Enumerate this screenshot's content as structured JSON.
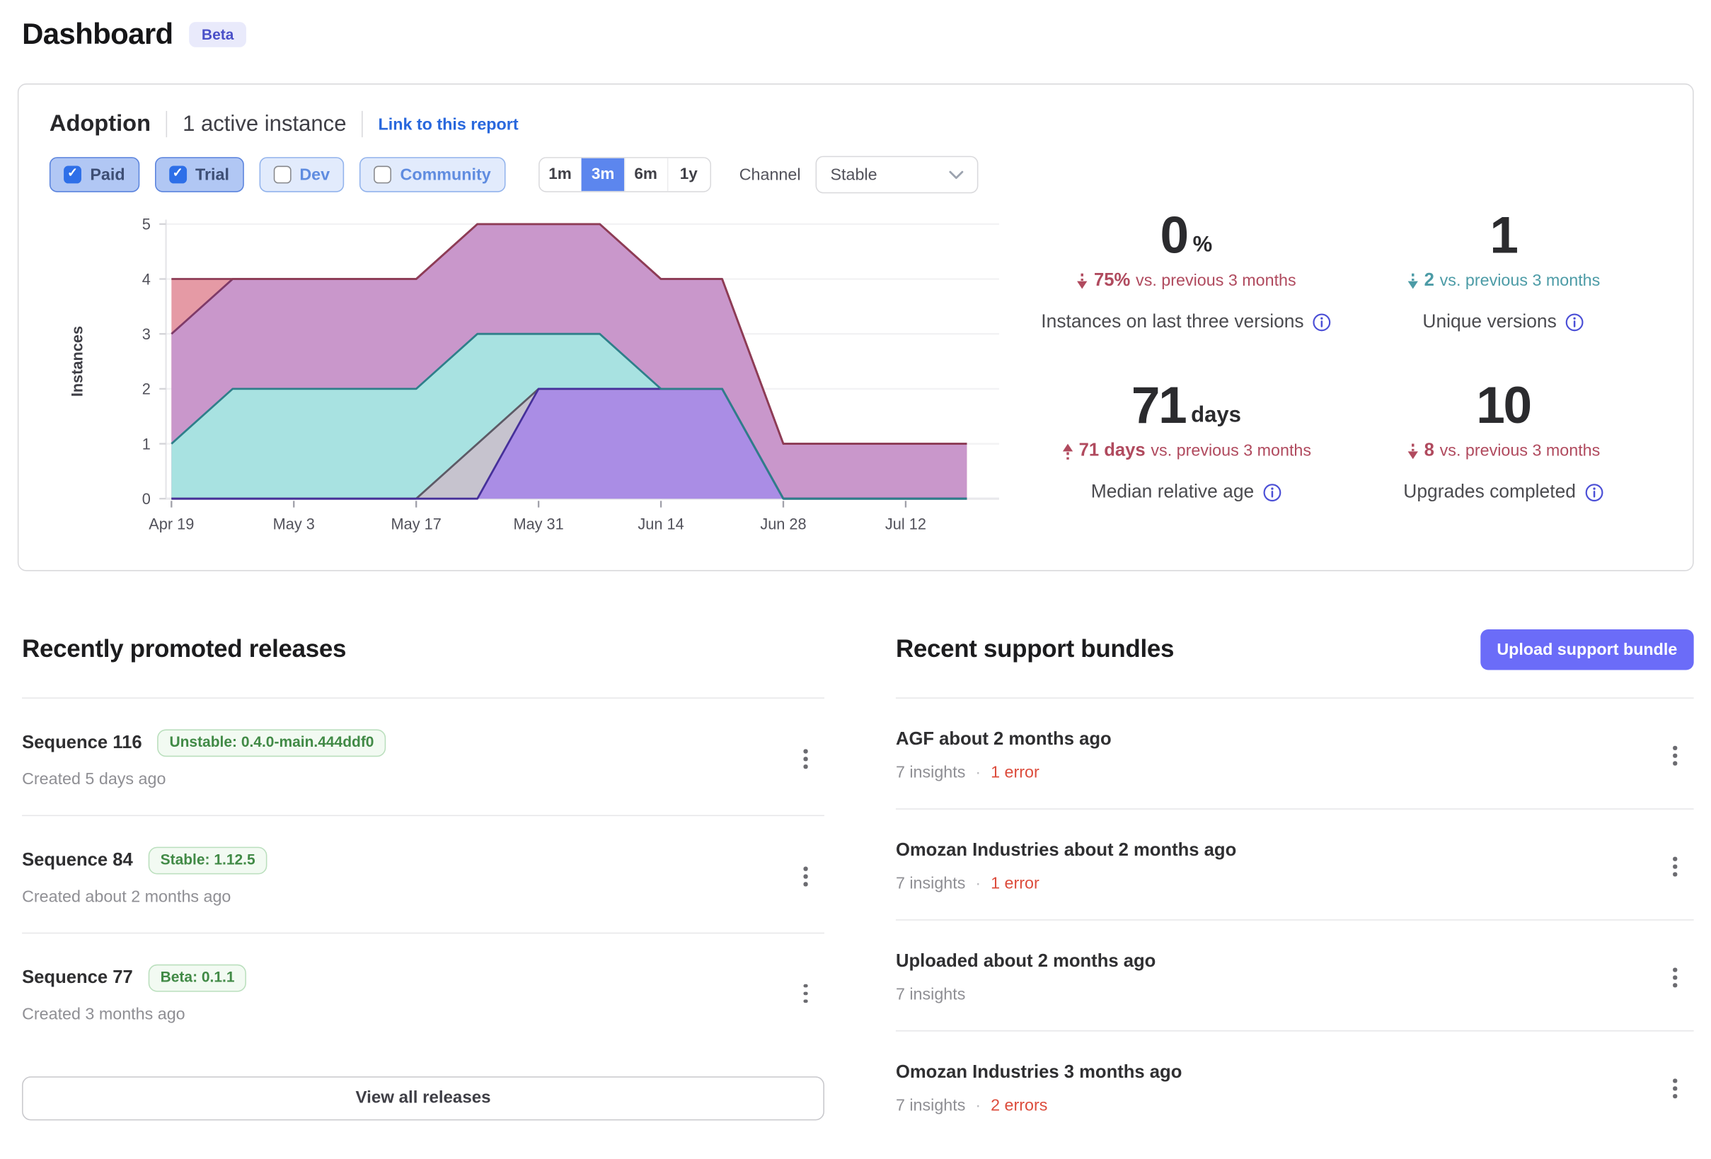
{
  "page": {
    "title": "Dashboard",
    "beta_badge": "Beta"
  },
  "adoption": {
    "title": "Adoption",
    "active_instances": "1 active instance",
    "report_link": "Link to this report",
    "filters": [
      {
        "label": "Paid",
        "checked": true
      },
      {
        "label": "Trial",
        "checked": true
      },
      {
        "label": "Dev",
        "checked": false
      },
      {
        "label": "Community",
        "checked": false
      }
    ],
    "time_ranges": [
      "1m",
      "3m",
      "6m",
      "1y"
    ],
    "selected_range": "3m",
    "channel": {
      "label": "Channel",
      "value": "Stable"
    },
    "stats": [
      {
        "value": "0",
        "unit": "%",
        "direction": "down",
        "delta": "75%",
        "delta_suffix": "vs. previous 3 months",
        "label": "Instances on last three versions",
        "trend_color": "#b04a5e"
      },
      {
        "value": "1",
        "unit": "",
        "direction": "down",
        "delta": "2",
        "delta_suffix": "vs. previous 3 months",
        "label": "Unique versions",
        "trend_color": "#4c9ba6"
      },
      {
        "value": "71",
        "unit": "days",
        "direction": "up",
        "delta": "71 days",
        "delta_suffix": "vs. previous 3 months",
        "label": "Median relative age",
        "trend_color": "#b04a5e"
      },
      {
        "value": "10",
        "unit": "",
        "direction": "down",
        "delta": "8",
        "delta_suffix": "vs. previous 3 months",
        "label": "Upgrades completed",
        "trend_color": "#b04a5e"
      }
    ]
  },
  "chart_data": {
    "type": "area",
    "title": "",
    "xlabel": "",
    "ylabel": "Instances",
    "ylim": [
      0,
      5
    ],
    "yticks": [
      0,
      1,
      2,
      3,
      4,
      5
    ],
    "x": [
      "Apr 19",
      "Apr 26",
      "May 3",
      "May 10",
      "May 17",
      "May 24",
      "May 31",
      "Jun 7",
      "Jun 14",
      "Jun 21",
      "Jun 28",
      "Jul 5",
      "Jul 12",
      "Jul 19"
    ],
    "x_tick_every": 2,
    "grid": true,
    "legend": false,
    "series": [
      {
        "name": "area-1",
        "fill": "#e59aa5",
        "stroke": "#8e3c55",
        "values": [
          4,
          4,
          4,
          4,
          4,
          5,
          5,
          5,
          4,
          4,
          1,
          1,
          1,
          1
        ]
      },
      {
        "name": "area-2",
        "fill": "#c997cb",
        "stroke": "#7e3a68",
        "values": [
          3,
          4,
          4,
          4,
          4,
          5,
          5,
          5,
          4,
          4,
          1,
          1,
          1,
          1
        ]
      },
      {
        "name": "area-3",
        "fill": "#a8e2e1",
        "stroke": "#2e7f8a",
        "values": [
          1,
          2,
          2,
          2,
          2,
          3,
          3,
          3,
          2,
          2,
          0,
          0,
          0,
          0
        ]
      },
      {
        "name": "area-4",
        "fill": "#c6c3ce",
        "stroke": "#5d5a66",
        "values": [
          0,
          0,
          0,
          0,
          0,
          1,
          2,
          2,
          2,
          2,
          0,
          0,
          0,
          0
        ]
      },
      {
        "name": "area-5",
        "fill": "#aa8de5",
        "stroke": "#46309a",
        "values": [
          0,
          0,
          0,
          0,
          0,
          0,
          2,
          2,
          2,
          2,
          0,
          0,
          0,
          0
        ]
      }
    ],
    "stroke_order": [
      1,
      0,
      3,
      4,
      2
    ]
  },
  "releases": {
    "title": "Recently promoted releases",
    "items": [
      {
        "name": "Sequence 116",
        "badge": "Unstable: 0.4.0-main.444ddf0",
        "created": "Created 5 days ago"
      },
      {
        "name": "Sequence 84",
        "badge": "Stable: 1.12.5",
        "created": "Created about 2 months ago"
      },
      {
        "name": "Sequence 77",
        "badge": "Beta: 0.1.1",
        "created": "Created 3 months ago"
      }
    ],
    "view_all_label": "View all releases"
  },
  "bundles": {
    "title": "Recent support bundles",
    "upload_label": "Upload support bundle",
    "meta_separator": "·",
    "items": [
      {
        "name": "AGF about 2 months ago",
        "insights": "7 insights",
        "errors": "1 error"
      },
      {
        "name": "Omozan Industries about 2 months ago",
        "insights": "7 insights",
        "errors": "1 error"
      },
      {
        "name": "Uploaded about 2 months ago",
        "insights": "7 insights",
        "errors": ""
      },
      {
        "name": "Omozan Industries 3 months ago",
        "insights": "7 insights",
        "errors": "2 errors"
      }
    ]
  },
  "icons": {
    "check": "✓"
  },
  "colors": {
    "accent_blue": "#5c86ee",
    "link_blue": "#2968dd",
    "indigo_button": "#6b6cf8",
    "badge_green": "#418a46",
    "error_red": "#dc4c3c",
    "trend_red": "#b04a5e",
    "trend_teal": "#4c9ba6",
    "info_icon": "#4b4fd6"
  }
}
